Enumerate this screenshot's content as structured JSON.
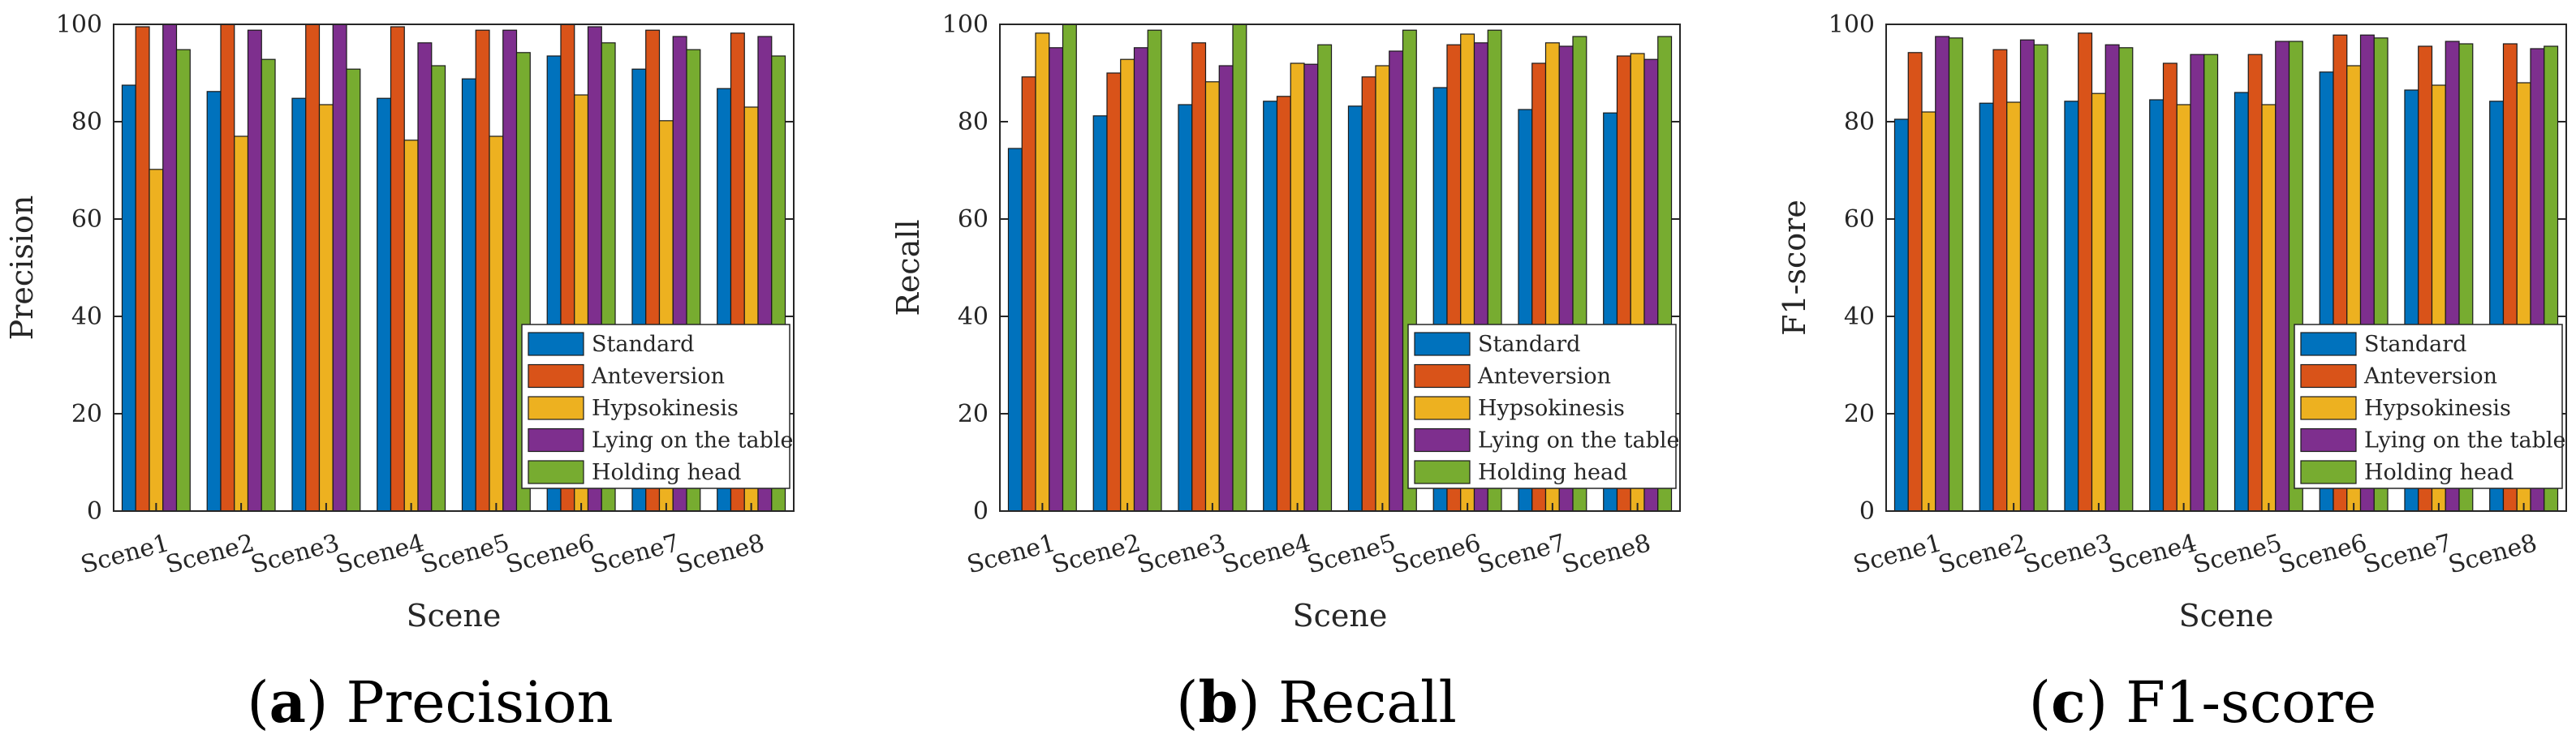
{
  "series_names": [
    "Standard",
    "Anteversion",
    "Hypsokinesis",
    "Lying on the table",
    "Holding head"
  ],
  "series_colors": [
    "#0072BD",
    "#D95319",
    "#EDB120",
    "#7E2F8E",
    "#77AC30"
  ],
  "chart_data": [
    {
      "type": "bar",
      "title": "",
      "caption_letter": "a",
      "caption_text": "Precision",
      "xlabel": "Scene",
      "ylabel": "Precision",
      "ylim": [
        0,
        100
      ],
      "yticks": [
        "0",
        "20",
        "40",
        "60",
        "80",
        "100"
      ],
      "categories": [
        "Scene1",
        "Scene2",
        "Scene3",
        "Scene4",
        "Scene5",
        "Scene6",
        "Scene7",
        "Scene8"
      ],
      "legend_location": "bottom-right",
      "series": [
        {
          "name": "Standard",
          "values": [
            87.5,
            86.2,
            84.8,
            84.8,
            88.8,
            93.5,
            90.8,
            86.8
          ]
        },
        {
          "name": "Anteversion",
          "values": [
            99.5,
            100,
            100,
            99.5,
            98.8,
            100,
            98.8,
            98.2
          ]
        },
        {
          "name": "Hypsokinesis",
          "values": [
            70.2,
            77,
            83.5,
            76.2,
            77,
            85.5,
            80.2,
            83
          ]
        },
        {
          "name": "Lying on the table",
          "values": [
            100,
            98.8,
            100,
            96.2,
            98.8,
            99.5,
            97.5,
            97.5
          ]
        },
        {
          "name": "Holding head",
          "values": [
            94.8,
            92.8,
            90.8,
            91.5,
            94.2,
            96.2,
            94.8,
            93.5
          ]
        }
      ]
    },
    {
      "type": "bar",
      "title": "",
      "caption_letter": "b",
      "caption_text": "Recall",
      "xlabel": "Scene",
      "ylabel": "Recall",
      "ylim": [
        0,
        100
      ],
      "yticks": [
        "0",
        "20",
        "40",
        "60",
        "80",
        "100"
      ],
      "categories": [
        "Scene1",
        "Scene2",
        "Scene3",
        "Scene4",
        "Scene5",
        "Scene6",
        "Scene7",
        "Scene8"
      ],
      "legend_location": "bottom-right",
      "series": [
        {
          "name": "Standard",
          "values": [
            74.5,
            81.2,
            83.5,
            84.2,
            83.2,
            87,
            82.5,
            81.8
          ]
        },
        {
          "name": "Anteversion",
          "values": [
            89.2,
            90,
            96.2,
            85.2,
            89.2,
            95.8,
            92,
            93.5
          ]
        },
        {
          "name": "Hypsokinesis",
          "values": [
            98.2,
            92.8,
            88.2,
            92,
            91.5,
            98,
            96.2,
            94
          ]
        },
        {
          "name": "Lying on the table",
          "values": [
            95.2,
            95.2,
            91.5,
            91.8,
            94.5,
            96.2,
            95.5,
            92.8
          ]
        },
        {
          "name": "Holding head",
          "values": [
            100,
            98.8,
            100,
            95.8,
            98.8,
            98.8,
            97.5,
            97.5
          ]
        }
      ]
    },
    {
      "type": "bar",
      "title": "",
      "caption_letter": "c",
      "caption_text": "F1-score",
      "xlabel": "Scene",
      "ylabel": "F1-score",
      "ylim": [
        0,
        100
      ],
      "yticks": [
        "0",
        "20",
        "40",
        "60",
        "80",
        "100"
      ],
      "categories": [
        "Scene1",
        "Scene2",
        "Scene3",
        "Scene4",
        "Scene5",
        "Scene6",
        "Scene7",
        "Scene8"
      ],
      "legend_location": "bottom-right",
      "series": [
        {
          "name": "Standard",
          "values": [
            80.5,
            83.8,
            84.2,
            84.5,
            86,
            90.2,
            86.5,
            84.2
          ]
        },
        {
          "name": "Anteversion",
          "values": [
            94.2,
            94.8,
            98.2,
            92,
            93.8,
            97.8,
            95.5,
            96
          ]
        },
        {
          "name": "Hypsokinesis",
          "values": [
            82,
            84,
            85.8,
            83.5,
            83.5,
            91.5,
            87.5,
            88
          ]
        },
        {
          "name": "Lying on the table",
          "values": [
            97.5,
            96.8,
            95.8,
            93.8,
            96.5,
            97.8,
            96.5,
            95
          ]
        },
        {
          "name": "Holding head",
          "values": [
            97.2,
            95.8,
            95.2,
            93.8,
            96.5,
            97.2,
            96,
            95.5
          ]
        }
      ]
    }
  ]
}
